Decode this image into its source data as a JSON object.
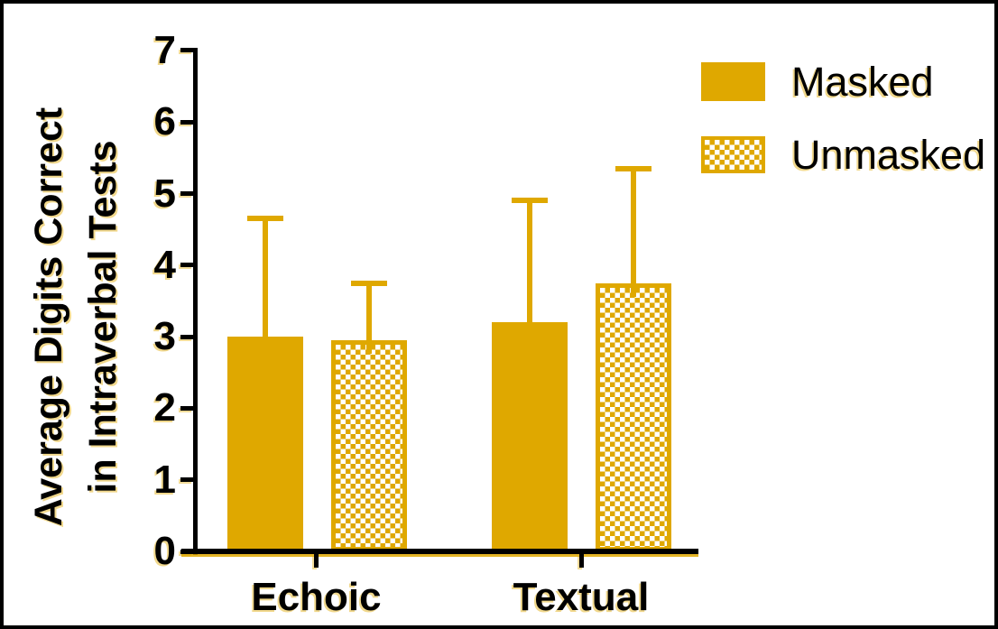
{
  "figure": {
    "background": "#ffffff",
    "border_color": "#000000"
  },
  "chart_data": {
    "type": "bar",
    "title": "",
    "categories": [
      "Echoic",
      "Textual"
    ],
    "series": [
      {
        "name": "Masked",
        "pattern": "solid",
        "values": [
          3.0,
          3.2
        ],
        "error_upper": [
          1.65,
          1.7
        ]
      },
      {
        "name": "Unmasked",
        "pattern": "checker",
        "values": [
          2.95,
          3.75
        ],
        "error_upper": [
          0.8,
          1.6
        ]
      }
    ],
    "ylabel_line1": "Average Digits Correct",
    "ylabel_line2": "in Intraverbal Tests",
    "xlabel": "",
    "ylim": [
      0,
      7
    ],
    "yticks": [
      "0",
      "1",
      "2",
      "3",
      "4",
      "5",
      "6",
      "7"
    ],
    "grid": false,
    "legend_position": "top-right",
    "bar_color": "#DFA800",
    "error_bar_color": "#DFA800"
  },
  "legend": {
    "items": [
      {
        "label": "Masked",
        "swatch": "solid"
      },
      {
        "label": "Unmasked",
        "swatch": "checker"
      }
    ]
  }
}
